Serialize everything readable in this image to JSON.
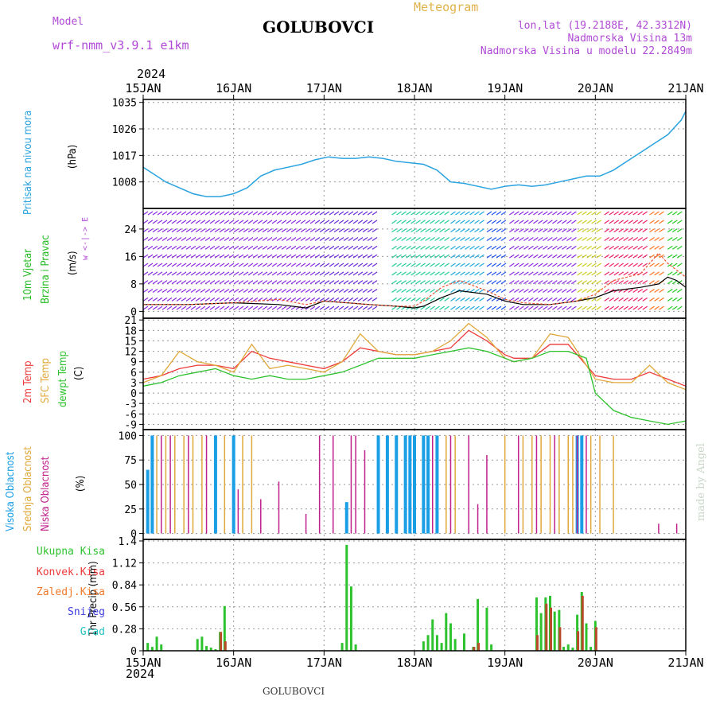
{
  "header": {
    "title": "GOLUBOVCI",
    "model_label": "Model",
    "model_name": "wrf-nmm_v3.9.1 e1km",
    "meteogram_label": "Meteogram",
    "lonlat": "lon,lat (19.2188E, 42.3312N)",
    "altitude": "Nadmorska Visina 13m",
    "model_altitude": "Nadmorska Visina u modelu 22.2849m",
    "year": "2024",
    "footer_title": "GOLUBOVCI",
    "credit": "made by Angel"
  },
  "time_axis": {
    "labels": [
      "15JAN",
      "16JAN",
      "17JAN",
      "18JAN",
      "19JAN",
      "20JAN",
      "21JAN"
    ],
    "range_days": [
      0,
      6
    ]
  },
  "panels": {
    "pressure": {
      "label": "Pritisak na nivou mora",
      "unit": "(hPa)",
      "ticks": [
        "1035",
        "1026",
        "1017",
        "1008"
      ]
    },
    "wind": {
      "label1": "10m Vjetar",
      "label2": "Brzina i Pravac",
      "unit": "(m/s)",
      "ticks": [
        "24",
        "16",
        "8",
        "0"
      ],
      "compass": "w <-|-> E"
    },
    "temp": {
      "label1": "2m Temp",
      "label2": "SFC Temp",
      "label3": "dewpt Temp",
      "unit": "(C)",
      "ticks": [
        "21",
        "18",
        "15",
        "12",
        "9",
        "6",
        "3",
        "0",
        "-3",
        "-6",
        "-9"
      ]
    },
    "cloud": {
      "label1": "Visoka Oblacnost",
      "label2": "Srednja Oblacnost",
      "label3": "Niska Oblacnost",
      "unit": "(%)",
      "ticks": [
        "100",
        "75",
        "50",
        "25",
        "0"
      ]
    },
    "precip": {
      "label": "1hr Precip (mm)",
      "ticks": [
        "1.4",
        "1.12",
        "0.84",
        "0.56",
        "0.28",
        "0"
      ],
      "legend": [
        "Ukupna Kisa",
        "Konvek.Kisa",
        "Zaledj.Kisa",
        "Snijeg",
        "Grad"
      ]
    }
  },
  "colors": {
    "pressure": "#2aa3e0",
    "temp2m": "#ee3a3a",
    "sfc": "#e0a83a",
    "dewpt": "#2ec22e",
    "high_cloud": "#1a9ee6",
    "mid_cloud": "#e0a83a",
    "low_cloud": "#c0208c",
    "rain": "#2ec22e",
    "conv": "#b84a2a",
    "wind_label": "#22bb22",
    "magenta": "#b04ad6"
  },
  "chart_data": [
    {
      "type": "line",
      "title": "",
      "ylabel": "Pritisak na nivou mora (hPa)",
      "ylim": [
        999,
        1036
      ],
      "series": [
        {
          "name": "Pritisak na nivou mora",
          "x": [
            0,
            0.1,
            0.25,
            0.4,
            0.55,
            0.7,
            0.85,
            1.0,
            1.15,
            1.3,
            1.45,
            1.6,
            1.75,
            1.9,
            2.05,
            2.2,
            2.35,
            2.5,
            2.65,
            2.8,
            2.95,
            3.1,
            3.25,
            3.4,
            3.55,
            3.7,
            3.85,
            4.0,
            4.15,
            4.3,
            4.45,
            4.6,
            4.75,
            4.9,
            5.05,
            5.2,
            5.35,
            5.5,
            5.65,
            5.8,
            5.95,
            6.0
          ],
          "y": [
            1013,
            1011,
            1008,
            1006,
            1004,
            1003,
            1003,
            1004,
            1006,
            1010,
            1012,
            1013,
            1014,
            1015.5,
            1016.5,
            1016,
            1016,
            1016.5,
            1016,
            1015,
            1014.5,
            1014,
            1012,
            1008,
            1007.5,
            1006.5,
            1005.5,
            1006.5,
            1007,
            1006.5,
            1007,
            1008,
            1009,
            1010,
            1010,
            1012,
            1015,
            1018,
            1021,
            1024,
            1029,
            1032
          ]
        }
      ]
    },
    {
      "type": "line",
      "title": "",
      "ylabel": "10m Vjetar Brzina i Pravac (m/s)",
      "ylim": [
        -2,
        30
      ],
      "series": [
        {
          "name": "speed",
          "x": [
            0,
            0.5,
            1.0,
            1.5,
            1.8,
            2.0,
            2.5,
            2.8,
            3.0,
            3.1,
            3.3,
            3.5,
            3.8,
            4.0,
            4.2,
            4.5,
            4.8,
            5.0,
            5.2,
            5.5,
            5.7,
            5.8,
            5.9,
            6.0
          ],
          "y": [
            2,
            2,
            2.5,
            2,
            1,
            3,
            2,
            1.5,
            1,
            1.5,
            4,
            6,
            5,
            3,
            2,
            2,
            3,
            4,
            6,
            7,
            8,
            10,
            9,
            7
          ]
        },
        {
          "name": "gust",
          "x": [
            0,
            0.5,
            1.0,
            1.5,
            1.8,
            2.0,
            2.5,
            2.8,
            3.0,
            3.1,
            3.3,
            3.5,
            3.8,
            4.0,
            4.2,
            4.5,
            4.8,
            5.0,
            5.2,
            5.5,
            5.7,
            5.8,
            5.9,
            6.0
          ],
          "y": [
            2,
            2,
            2.5,
            3.5,
            2,
            3,
            2,
            1.5,
            1.5,
            3,
            7,
            9,
            6,
            3.5,
            2.5,
            2,
            3,
            5,
            9,
            11,
            17,
            14,
            12,
            10
          ]
        }
      ]
    },
    {
      "type": "line",
      "title": "",
      "ylabel": "Temp (C)",
      "ylim": [
        -10.5,
        21.5
      ],
      "series": [
        {
          "name": "2m Temp",
          "x": [
            0,
            0.2,
            0.4,
            0.6,
            0.8,
            1.0,
            1.2,
            1.4,
            1.6,
            1.8,
            2.0,
            2.2,
            2.4,
            2.6,
            2.8,
            3.0,
            3.2,
            3.4,
            3.6,
            3.8,
            4.0,
            4.1,
            4.3,
            4.5,
            4.7,
            4.9,
            5.0,
            5.2,
            5.4,
            5.6,
            5.8,
            6.0
          ],
          "y": [
            4,
            5,
            7,
            8,
            8,
            7,
            12,
            10,
            9,
            8,
            7,
            9,
            13,
            12,
            11,
            11,
            12,
            13,
            18,
            15,
            11,
            10,
            10,
            14,
            14,
            8,
            5,
            4,
            4,
            6,
            4,
            2
          ]
        },
        {
          "name": "SFC Temp",
          "x": [
            0,
            0.2,
            0.4,
            0.6,
            0.8,
            1.0,
            1.2,
            1.4,
            1.6,
            1.8,
            2.0,
            2.2,
            2.4,
            2.6,
            2.8,
            3.0,
            3.2,
            3.4,
            3.6,
            3.8,
            4.0,
            4.1,
            4.3,
            4.5,
            4.7,
            4.9,
            5.0,
            5.2,
            5.4,
            5.6,
            5.8,
            6.0
          ],
          "y": [
            3,
            5,
            12,
            9,
            8,
            6,
            14,
            7,
            8,
            7,
            6,
            9,
            17,
            12,
            11,
            11,
            12,
            15,
            20,
            16,
            10,
            9,
            10,
            17,
            16,
            8,
            4,
            3,
            3,
            8,
            3,
            1
          ]
        },
        {
          "name": "dewpt Temp",
          "x": [
            0,
            0.2,
            0.4,
            0.6,
            0.8,
            1.0,
            1.2,
            1.4,
            1.6,
            1.8,
            2.0,
            2.2,
            2.4,
            2.6,
            2.8,
            3.0,
            3.2,
            3.4,
            3.6,
            3.8,
            4.0,
            4.1,
            4.3,
            4.5,
            4.7,
            4.9,
            5.0,
            5.2,
            5.4,
            5.6,
            5.8,
            6.0
          ],
          "y": [
            2,
            3,
            5,
            6,
            7,
            5,
            4,
            5,
            4,
            4,
            5,
            6,
            8,
            10,
            10,
            10,
            11,
            12,
            13,
            12,
            10,
            9,
            10,
            12,
            12,
            10,
            0,
            -5,
            -7,
            -8,
            -9,
            -8
          ]
        }
      ]
    },
    {
      "type": "bar",
      "title": "",
      "ylabel": "Oblacnost (%)",
      "ylim": [
        0,
        100
      ],
      "series": [
        {
          "name": "Visoka Oblacnost",
          "x": [
            0.05,
            0.1,
            0.8,
            1.0,
            2.25,
            2.6,
            2.7,
            2.8,
            2.9,
            2.95,
            3.0,
            3.1,
            3.15,
            3.25,
            4.8,
            4.85
          ],
          "y": [
            65,
            100,
            100,
            100,
            32,
            100,
            100,
            100,
            100,
            100,
            100,
            100,
            100,
            100,
            100,
            100
          ]
        },
        {
          "name": "Srednja Oblacnost",
          "x": [
            0.15,
            0.25,
            0.35,
            0.45,
            0.55,
            0.65,
            0.9,
            1.1,
            1.2,
            3.35,
            3.45,
            4.0,
            4.2,
            4.3,
            4.4,
            4.5,
            4.6,
            4.7,
            4.75,
            4.95,
            5.05,
            5.2
          ],
          "y": [
            100,
            100,
            100,
            100,
            100,
            100,
            100,
            100,
            100,
            100,
            100,
            100,
            100,
            100,
            100,
            100,
            100,
            100,
            100,
            100,
            100,
            100
          ]
        },
        {
          "name": "Niska Oblacnost",
          "x": [
            0.2,
            0.3,
            0.5,
            0.7,
            1.05,
            1.3,
            1.5,
            1.8,
            1.95,
            2.1,
            2.3,
            2.35,
            2.45,
            3.2,
            3.4,
            3.6,
            3.7,
            3.8,
            4.15,
            4.35,
            4.55,
            4.8,
            4.9,
            5.7,
            5.9
          ],
          "y": [
            100,
            100,
            100,
            100,
            45,
            35,
            53,
            20,
            100,
            100,
            100,
            100,
            85,
            100,
            100,
            100,
            30,
            80,
            100,
            100,
            100,
            100,
            100,
            10,
            10
          ]
        }
      ]
    },
    {
      "type": "bar",
      "title": "",
      "ylabel": "1hr Precip (mm)",
      "ylim": [
        0,
        1.4
      ],
      "series": [
        {
          "name": "Ukupna Kisa",
          "x": [
            0.05,
            0.1,
            0.15,
            0.2,
            0.6,
            0.65,
            0.7,
            0.75,
            0.8,
            0.85,
            0.9,
            2.2,
            2.25,
            2.3,
            2.35,
            3.1,
            3.15,
            3.2,
            3.25,
            3.3,
            3.35,
            3.4,
            3.45,
            3.55,
            3.65,
            3.7,
            3.8,
            3.85,
            4.35,
            4.4,
            4.45,
            4.5,
            4.55,
            4.6,
            4.65,
            4.7,
            4.75,
            4.8,
            4.85,
            4.9,
            4.95,
            5.0
          ],
          "y": [
            0.1,
            0.05,
            0.18,
            0.08,
            0.15,
            0.18,
            0.06,
            0.04,
            0.02,
            0.24,
            0.57,
            0.1,
            1.35,
            0.82,
            0.08,
            0.12,
            0.2,
            0.4,
            0.2,
            0.1,
            0.48,
            0.35,
            0.15,
            0.22,
            0.05,
            0.66,
            0.55,
            0.08,
            0.68,
            0.48,
            0.68,
            0.7,
            0.5,
            0.52,
            0.05,
            0.08,
            0.04,
            0.46,
            0.75,
            0.35,
            0.05,
            0.38
          ]
        },
        {
          "name": "Konvek.Kisa",
          "x": [
            0.85,
            0.9,
            3.65,
            3.7,
            4.35,
            4.45,
            4.5,
            4.6,
            4.8,
            4.85,
            5.0
          ],
          "y": [
            0.24,
            0.12,
            0.05,
            0.1,
            0.2,
            0.6,
            0.55,
            0.3,
            0.25,
            0.7,
            0.3
          ]
        }
      ]
    }
  ]
}
